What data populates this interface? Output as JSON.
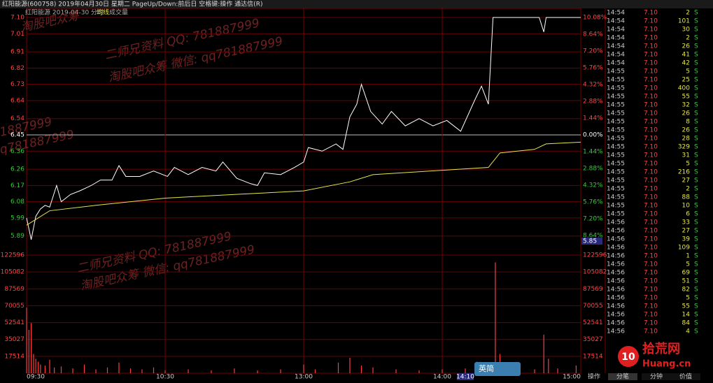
{
  "header": {
    "title": "红阳能源(600758) 2019年04月30日 星期二 PageUp/Down:前后日 空格键:操作 通达信(R)",
    "legend": "红阳能源  2019-04-30 分时",
    "legend_avg": "均线",
    "legend_vol": "成交量"
  },
  "price_chart": {
    "type": "line",
    "ylim": [
      5.8,
      7.1
    ],
    "yticks": [
      {
        "value": 7.1,
        "label": "7.10"
      },
      {
        "value": 7.01,
        "label": "7.01"
      },
      {
        "value": 6.91,
        "label": "6.91"
      },
      {
        "value": 6.82,
        "label": "6.82"
      },
      {
        "value": 6.73,
        "label": "6.73"
      },
      {
        "value": 6.64,
        "label": "6.64"
      },
      {
        "value": 6.54,
        "label": "6.54"
      },
      {
        "value": 6.45,
        "label": "6.45"
      },
      {
        "value": 6.36,
        "label": "6.36"
      },
      {
        "value": 6.26,
        "label": "6.26"
      },
      {
        "value": 6.17,
        "label": "6.17"
      },
      {
        "value": 6.08,
        "label": "6.08"
      },
      {
        "value": 5.99,
        "label": "5.99"
      },
      {
        "value": 5.89,
        "label": "5.89"
      }
    ],
    "y2lim": [
      -10.08,
      10.08
    ],
    "y2ticks": [
      {
        "value": 10.08,
        "label": "10.08%"
      },
      {
        "value": 8.64,
        "label": "8.64%"
      },
      {
        "value": 7.2,
        "label": "7.20%"
      },
      {
        "value": 5.76,
        "label": "5.76%"
      },
      {
        "value": 4.32,
        "label": "4.32%"
      },
      {
        "value": 2.88,
        "label": "2.88%"
      },
      {
        "value": 1.44,
        "label": "1.44%"
      },
      {
        "value": 0,
        "label": "0.00%"
      },
      {
        "value": -1.44,
        "label": "1.44%"
      },
      {
        "value": -2.88,
        "label": "2.88%"
      },
      {
        "value": -4.32,
        "label": "4.32%"
      },
      {
        "value": -5.76,
        "label": "5.76%"
      },
      {
        "value": -7.2,
        "label": "7.20%"
      },
      {
        "value": -8.64,
        "label": "8.64%"
      }
    ],
    "cursor_price": "5.85",
    "xlim": [
      0,
      240
    ],
    "xticks": [
      {
        "value": 0,
        "label": "09:30"
      },
      {
        "value": 60,
        "label": "10:30"
      },
      {
        "value": 120,
        "label": "13:00"
      },
      {
        "value": 180,
        "label": "14:00"
      },
      {
        "value": 240,
        "label": "15:00"
      }
    ],
    "cursor_time": {
      "value": 190,
      "label": "14:10"
    },
    "series": [
      {
        "name": "分时",
        "color": "#ffffff",
        "x": [
          0,
          2,
          4,
          6,
          8,
          10,
          13,
          15,
          19,
          23,
          28,
          32,
          37,
          40,
          43,
          49,
          55,
          61,
          64,
          70,
          76,
          82,
          85,
          91,
          97,
          100,
          103,
          110,
          116,
          120,
          122,
          128,
          134,
          137,
          140,
          143,
          145,
          149,
          154,
          158,
          164,
          170,
          176,
          182,
          188,
          194,
          197,
          200,
          202,
          222,
          224,
          225,
          240
        ],
        "values": [
          5.99,
          5.87,
          6.0,
          6.04,
          6.06,
          6.05,
          6.17,
          6.08,
          6.12,
          6.14,
          6.17,
          6.2,
          6.2,
          6.28,
          6.22,
          6.22,
          6.25,
          6.22,
          6.27,
          6.23,
          6.27,
          6.25,
          6.3,
          6.21,
          6.18,
          6.17,
          6.24,
          6.23,
          6.27,
          6.3,
          6.38,
          6.36,
          6.4,
          6.37,
          6.55,
          6.62,
          6.73,
          6.58,
          6.51,
          6.58,
          6.5,
          6.54,
          6.5,
          6.53,
          6.47,
          6.64,
          6.72,
          6.62,
          7.1,
          7.1,
          7.02,
          7.1,
          7.1
        ]
      },
      {
        "name": "均线",
        "color": "#e6e64a",
        "x": [
          0,
          10,
          30,
          60,
          90,
          120,
          140,
          150,
          200,
          205,
          220,
          225,
          240
        ],
        "values": [
          5.95,
          6.03,
          6.06,
          6.1,
          6.12,
          6.14,
          6.19,
          6.23,
          6.27,
          6.35,
          6.37,
          6.4,
          6.41
        ]
      }
    ]
  },
  "volume_chart": {
    "type": "bar",
    "color": "#ff3b3b",
    "ylim": [
      0,
      122596
    ],
    "yticks": [
      122596,
      105082,
      87569,
      70055,
      52541,
      35027,
      17514
    ],
    "x": [
      0,
      1,
      2,
      3,
      4,
      5,
      6,
      8,
      10,
      12,
      15,
      20,
      25,
      30,
      35,
      40,
      45,
      50,
      55,
      60,
      70,
      80,
      90,
      100,
      110,
      120,
      125,
      135,
      140,
      145,
      150,
      160,
      170,
      180,
      190,
      195,
      200,
      203,
      205,
      210,
      220,
      224,
      226,
      230,
      238
    ],
    "values": [
      68000,
      45000,
      52000,
      20000,
      15000,
      12000,
      9000,
      8000,
      14000,
      6000,
      7000,
      5000,
      9000,
      4000,
      6000,
      11000,
      5000,
      4000,
      6000,
      3000,
      4000,
      3000,
      5000,
      3000,
      4000,
      9000,
      4000,
      11000,
      16000,
      8000,
      6000,
      4000,
      3000,
      4000,
      5000,
      12000,
      9000,
      115000,
      20000,
      6000,
      4000,
      40000,
      15000,
      5000,
      8000
    ]
  },
  "watermarks": [
    "淘股吧众筹",
    "二师兄资料  QQ: 781887999",
    "淘股吧众筹  微信: qq781887999",
    "1887999",
    "q781887999",
    "二师兄资料  QQ: 781887999",
    "淘股吧众筹  微信: qq781887999"
  ],
  "footer": {
    "action": "操作",
    "ime": "英简",
    "tabs": [
      "分笔",
      "分钟",
      "价值"
    ],
    "logo": "拾荒网",
    "logo_sub": "Huang.cn",
    "logo_num": "10"
  },
  "trades": {
    "rows": [
      [
        "14:54",
        "7.10",
        2,
        "S"
      ],
      [
        "14:54",
        "7.10",
        101,
        "S"
      ],
      [
        "14:54",
        "7.10",
        30,
        "S"
      ],
      [
        "14:54",
        "7.10",
        2,
        "S"
      ],
      [
        "14:54",
        "7.10",
        26,
        "S"
      ],
      [
        "14:54",
        "7.10",
        41,
        "S"
      ],
      [
        "14:54",
        "7.10",
        42,
        "S"
      ],
      [
        "14:55",
        "7.10",
        5,
        "S"
      ],
      [
        "14:55",
        "7.10",
        25,
        "S"
      ],
      [
        "14:55",
        "7.10",
        400,
        "S"
      ],
      [
        "14:55",
        "7.10",
        55,
        "S"
      ],
      [
        "14:55",
        "7.10",
        32,
        "S"
      ],
      [
        "14:55",
        "7.10",
        26,
        "S"
      ],
      [
        "14:55",
        "7.10",
        8,
        "S"
      ],
      [
        "14:55",
        "7.10",
        26,
        "S"
      ],
      [
        "14:55",
        "7.10",
        28,
        "S"
      ],
      [
        "14:55",
        "7.10",
        329,
        "S"
      ],
      [
        "14:55",
        "7.10",
        31,
        "S"
      ],
      [
        "14:55",
        "7.10",
        5,
        "S"
      ],
      [
        "14:55",
        "7.10",
        216,
        "S"
      ],
      [
        "14:55",
        "7.10",
        27,
        "S"
      ],
      [
        "14:55",
        "7.10",
        2,
        "S"
      ],
      [
        "14:55",
        "7.10",
        88,
        "S"
      ],
      [
        "14:55",
        "7.10",
        10,
        "S"
      ],
      [
        "14:55",
        "7.10",
        6,
        "S"
      ],
      [
        "14:56",
        "7.10",
        33,
        "S"
      ],
      [
        "14:56",
        "7.10",
        27,
        "S"
      ],
      [
        "14:56",
        "7.10",
        39,
        "S"
      ],
      [
        "14:56",
        "7.10",
        109,
        "S"
      ],
      [
        "14:56",
        "7.10",
        1,
        "S"
      ],
      [
        "14:56",
        "7.10",
        5,
        "S"
      ],
      [
        "14:56",
        "7.10",
        69,
        "S"
      ],
      [
        "14:56",
        "7.10",
        51,
        "S"
      ],
      [
        "14:56",
        "7.10",
        82,
        "S"
      ],
      [
        "14:56",
        "7.10",
        5,
        "S"
      ],
      [
        "14:56",
        "7.10",
        55,
        "S"
      ],
      [
        "14:56",
        "7.10",
        14,
        "S"
      ],
      [
        "14:56",
        "7.10",
        84,
        "S"
      ],
      [
        "14:56",
        "7.10",
        4,
        "S"
      ]
    ]
  }
}
